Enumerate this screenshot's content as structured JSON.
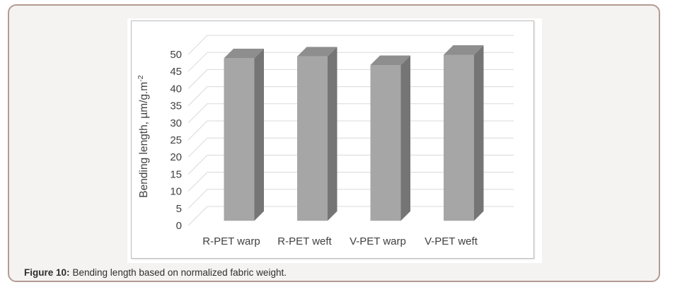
{
  "figure_caption": {
    "label": "Figure 10:",
    "text": "Bending length based on normalized fabric weight."
  },
  "chart_data": {
    "type": "bar",
    "style": "3d-column",
    "title": "",
    "xlabel": "",
    "ylabel": "Bending length, µm/g.m",
    "ylabel_superscript": "-2",
    "categories": [
      "R-PET warp",
      "R-PET weft",
      "V-PET warp",
      "V-PET weft"
    ],
    "values": [
      47.5,
      48,
      45.5,
      48.5
    ],
    "ylim": [
      0,
      50
    ],
    "ytick_step": 5,
    "grid": true,
    "legend": "none",
    "colors": {
      "bar_front": "#a6a6a6",
      "bar_top": "#8e8e8e",
      "bar_side": "#757575",
      "gridline": "#d9d9d9",
      "axis_text": "#404040",
      "plot_border": "#bcbcbc",
      "card_border": "#b49b93",
      "card_background": "#f4f3f2"
    }
  }
}
